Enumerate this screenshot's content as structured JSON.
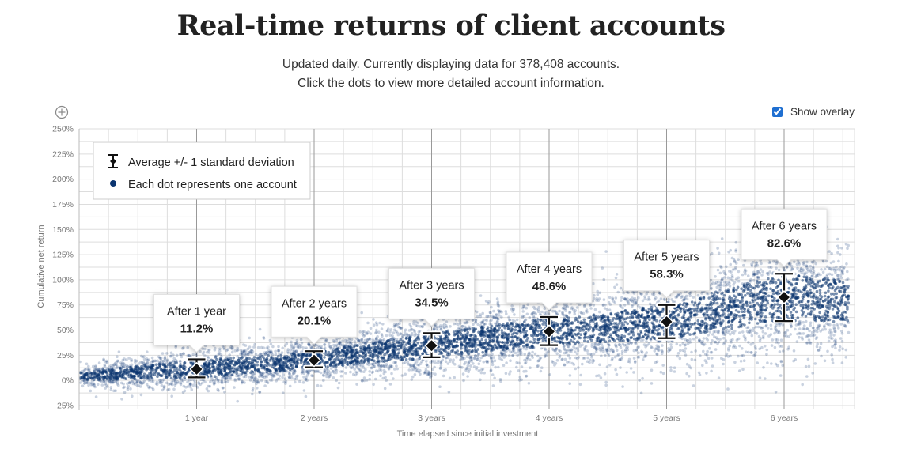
{
  "header": {
    "title": "Real-time returns of client accounts",
    "subtitle_line1": "Updated daily. Currently displaying data for 378,408 accounts.",
    "subtitle_line2": "Click the dots to view more detailed account information."
  },
  "controls": {
    "zoom_icon": "plus-circle-icon",
    "overlay_label": "Show overlay",
    "overlay_checked": true
  },
  "legend": {
    "items": [
      {
        "icon": "error-bar-icon",
        "label": "Average +/- 1 standard deviation"
      },
      {
        "icon": "dot-icon",
        "label": "Each dot represents one account"
      }
    ]
  },
  "colors": {
    "dots": "#0b3470",
    "marker": "#111111",
    "grid": "#dddddd",
    "major_grid": "#999999"
  },
  "chart_data": {
    "type": "scatter",
    "xlabel": "Time elapsed since initial investment",
    "ylabel": "Cumulative net return",
    "xlim": [
      0,
      6.5
    ],
    "ylim": [
      -25,
      250
    ],
    "x_tick_labels": [
      "1 year",
      "2 years",
      "3 years",
      "4 years",
      "5 years",
      "6 years"
    ],
    "y_tick_labels": [
      "250%",
      "225%",
      "200%",
      "175%",
      "150%",
      "125%",
      "100%",
      "75%",
      "50%",
      "25%",
      "0%",
      "-25%"
    ],
    "y_ticks": [
      250,
      225,
      200,
      175,
      150,
      125,
      100,
      75,
      50,
      25,
      0,
      -25
    ],
    "x_ticks": [
      1,
      2,
      3,
      4,
      5,
      6
    ],
    "grid": true,
    "summary": [
      {
        "x": 1,
        "label": "After 1 year",
        "value_label": "11.2%",
        "mean": 11.2,
        "low": 3,
        "high": 21
      },
      {
        "x": 2,
        "label": "After 2 years",
        "value_label": "20.1%",
        "mean": 20.1,
        "low": 13,
        "high": 29
      },
      {
        "x": 3,
        "label": "After 3 years",
        "value_label": "34.5%",
        "mean": 34.5,
        "low": 23,
        "high": 47
      },
      {
        "x": 4,
        "label": "After 4 years",
        "value_label": "48.6%",
        "mean": 48.6,
        "low": 35,
        "high": 63
      },
      {
        "x": 5,
        "label": "After 5 years",
        "value_label": "58.3%",
        "mean": 58.3,
        "low": 42,
        "high": 75
      },
      {
        "x": 6,
        "label": "After 6 years",
        "value_label": "82.6%",
        "mean": 82.6,
        "low": 59,
        "high": 106
      }
    ]
  }
}
